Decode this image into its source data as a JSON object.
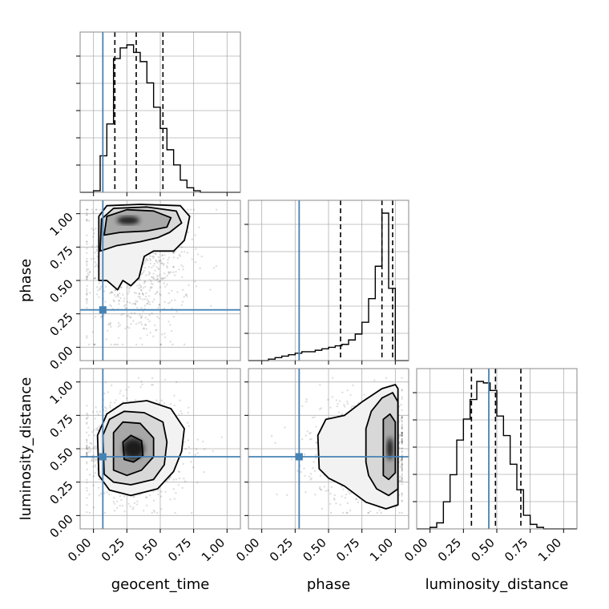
{
  "chart_data": {
    "type": "corner",
    "parameters": [
      "geocent_time",
      "phase",
      "luminosity_distance"
    ],
    "axis_labels": {
      "x": [
        "geocent_time",
        "phase",
        "luminosity_distance"
      ],
      "y": [
        "phase",
        "luminosity_distance"
      ]
    },
    "ranges": [
      [
        -0.1,
        1.1
      ],
      [
        -0.1,
        1.1
      ],
      [
        -0.1,
        1.1
      ]
    ],
    "ticks": [
      0.0,
      0.25,
      0.5,
      0.75,
      1.0
    ],
    "tick_labels": [
      "0.00",
      "0.25",
      "0.50",
      "0.75",
      "1.00"
    ],
    "truths": [
      0.07,
      0.28,
      0.44
    ],
    "truth_color": "#4682b4",
    "line_color": "#000000",
    "grid": true,
    "marginals": [
      {
        "parameter": "geocent_time",
        "bin_edges": [
          -0.1,
          -0.05,
          0.0,
          0.05,
          0.1,
          0.15,
          0.2,
          0.25,
          0.3,
          0.35,
          0.4,
          0.45,
          0.5,
          0.55,
          0.6,
          0.65,
          0.7,
          0.75,
          0.8,
          0.85,
          0.9,
          0.95,
          1.0,
          1.05,
          1.1
        ],
        "counts": [
          0,
          0,
          1,
          24,
          45,
          88,
          95,
          97,
          92,
          86,
          72,
          56,
          42,
          28,
          18,
          8,
          3,
          1,
          0,
          0,
          0,
          0,
          0,
          0
        ],
        "quantiles": [
          0.16,
          0.32,
          0.52
        ]
      },
      {
        "parameter": "phase",
        "bin_edges": [
          -0.1,
          -0.05,
          0.0,
          0.05,
          0.1,
          0.15,
          0.2,
          0.25,
          0.3,
          0.35,
          0.4,
          0.45,
          0.5,
          0.55,
          0.6,
          0.65,
          0.7,
          0.75,
          0.8,
          0.85,
          0.9,
          0.95,
          1.0,
          1.05,
          1.1
        ],
        "counts": [
          0,
          0,
          0,
          1,
          2,
          3,
          4,
          5,
          6,
          6,
          7,
          8,
          9,
          10,
          11,
          14,
          18,
          26,
          42,
          64,
          100,
          49,
          0,
          0
        ],
        "quantiles": [
          0.59,
          0.9,
          0.98
        ]
      },
      {
        "parameter": "luminosity_distance",
        "bin_edges": [
          -0.1,
          -0.05,
          0.0,
          0.05,
          0.1,
          0.15,
          0.2,
          0.25,
          0.3,
          0.35,
          0.4,
          0.45,
          0.5,
          0.55,
          0.6,
          0.65,
          0.7,
          0.75,
          0.8,
          0.85,
          0.9,
          0.95,
          1.0,
          1.05,
          1.1
        ],
        "counts": [
          0,
          0,
          1,
          4,
          18,
          36,
          59,
          73,
          86,
          98,
          97,
          92,
          75,
          62,
          43,
          26,
          9,
          3,
          1,
          0,
          0,
          0,
          0,
          0
        ],
        "quantiles": [
          0.31,
          0.49,
          0.68
        ]
      }
    ],
    "joint": [
      {
        "x": "geocent_time",
        "y": "phase",
        "density_peak": [
          0.3,
          0.95
        ],
        "contour_levels": 3
      },
      {
        "x": "geocent_time",
        "y": "luminosity_distance",
        "density_peak": [
          0.3,
          0.5
        ],
        "contour_levels": 4
      },
      {
        "x": "phase",
        "y": "luminosity_distance",
        "density_peak": [
          0.95,
          0.5
        ],
        "contour_levels": 3
      }
    ]
  }
}
